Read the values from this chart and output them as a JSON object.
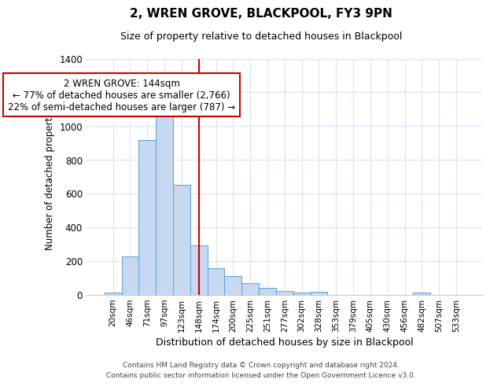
{
  "title": "2, WREN GROVE, BLACKPOOL, FY3 9PN",
  "subtitle": "Size of property relative to detached houses in Blackpool",
  "xlabel": "Distribution of detached houses by size in Blackpool",
  "ylabel": "Number of detached properties",
  "bar_labels": [
    "20sqm",
    "46sqm",
    "71sqm",
    "97sqm",
    "123sqm",
    "148sqm",
    "174sqm",
    "200sqm",
    "225sqm",
    "251sqm",
    "277sqm",
    "302sqm",
    "328sqm",
    "353sqm",
    "379sqm",
    "405sqm",
    "430sqm",
    "456sqm",
    "482sqm",
    "507sqm",
    "533sqm"
  ],
  "bar_heights": [
    13,
    228,
    918,
    1080,
    653,
    293,
    158,
    108,
    70,
    40,
    22,
    10,
    18,
    0,
    0,
    0,
    0,
    0,
    13,
    0,
    0
  ],
  "bar_color": "#c6d9f0",
  "bar_edge_color": "#5a9fd4",
  "vline_x_index": 5,
  "vline_color": "#cc0000",
  "annotation_text": "2 WREN GROVE: 144sqm\n← 77% of detached houses are smaller (2,766)\n22% of semi-detached houses are larger (787) →",
  "annotation_box_color": "#ffffff",
  "annotation_box_edge": "#cc0000",
  "ylim": [
    0,
    1400
  ],
  "yticks": [
    0,
    200,
    400,
    600,
    800,
    1000,
    1200,
    1400
  ],
  "footer_line1": "Contains HM Land Registry data © Crown copyright and database right 2024.",
  "footer_line2": "Contains public sector information licensed under the Open Government Licence v3.0.",
  "bg_color": "#ffffff",
  "grid_color": "#d8e4f0"
}
